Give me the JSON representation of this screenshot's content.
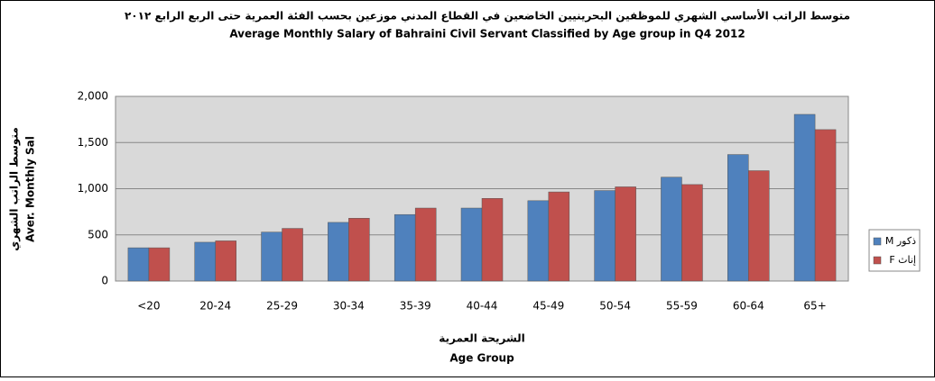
{
  "chart_data": {
    "type": "bar",
    "title": "متوسط الراتب الأساسي الشهري للموظفين البحرينيين الخاضعين في القطاع المدني موزعين بحسب الفئة العمرية حتى الربع الرابع ٢٠١٢",
    "subtitle": "Average Monthly Salary of Bahraini Civil Servant Classified by Age group in Q4 2012",
    "y_label": [
      "متوسط الراتب الشهري",
      "Aver. Monthly Sal"
    ],
    "x_label": [
      "الشريحة العمرية",
      "Age Group"
    ],
    "categories": [
      "<20",
      "20-24",
      "25-29",
      "30-34",
      "35-39",
      "40-44",
      "45-49",
      "50-54",
      "55-59",
      "60-64",
      "65+"
    ],
    "series": [
      {
        "name": "ذكور M",
        "color": "#4f81bd",
        "values": [
          360,
          420,
          530,
          635,
          720,
          790,
          870,
          980,
          1125,
          1370,
          1805
        ]
      },
      {
        "name": "إناث F",
        "color": "#c0504d",
        "values": [
          360,
          435,
          570,
          680,
          790,
          895,
          965,
          1020,
          1045,
          1195,
          1640
        ]
      }
    ],
    "ylim": [
      0,
      2000
    ],
    "yticks": [
      0,
      500,
      {
        "value": 1000,
        "label": "1,000"
      },
      {
        "value": 1500,
        "label": "1,500"
      },
      {
        "value": 2000,
        "label": "2,000"
      }
    ],
    "grid": true,
    "legend": "right"
  }
}
